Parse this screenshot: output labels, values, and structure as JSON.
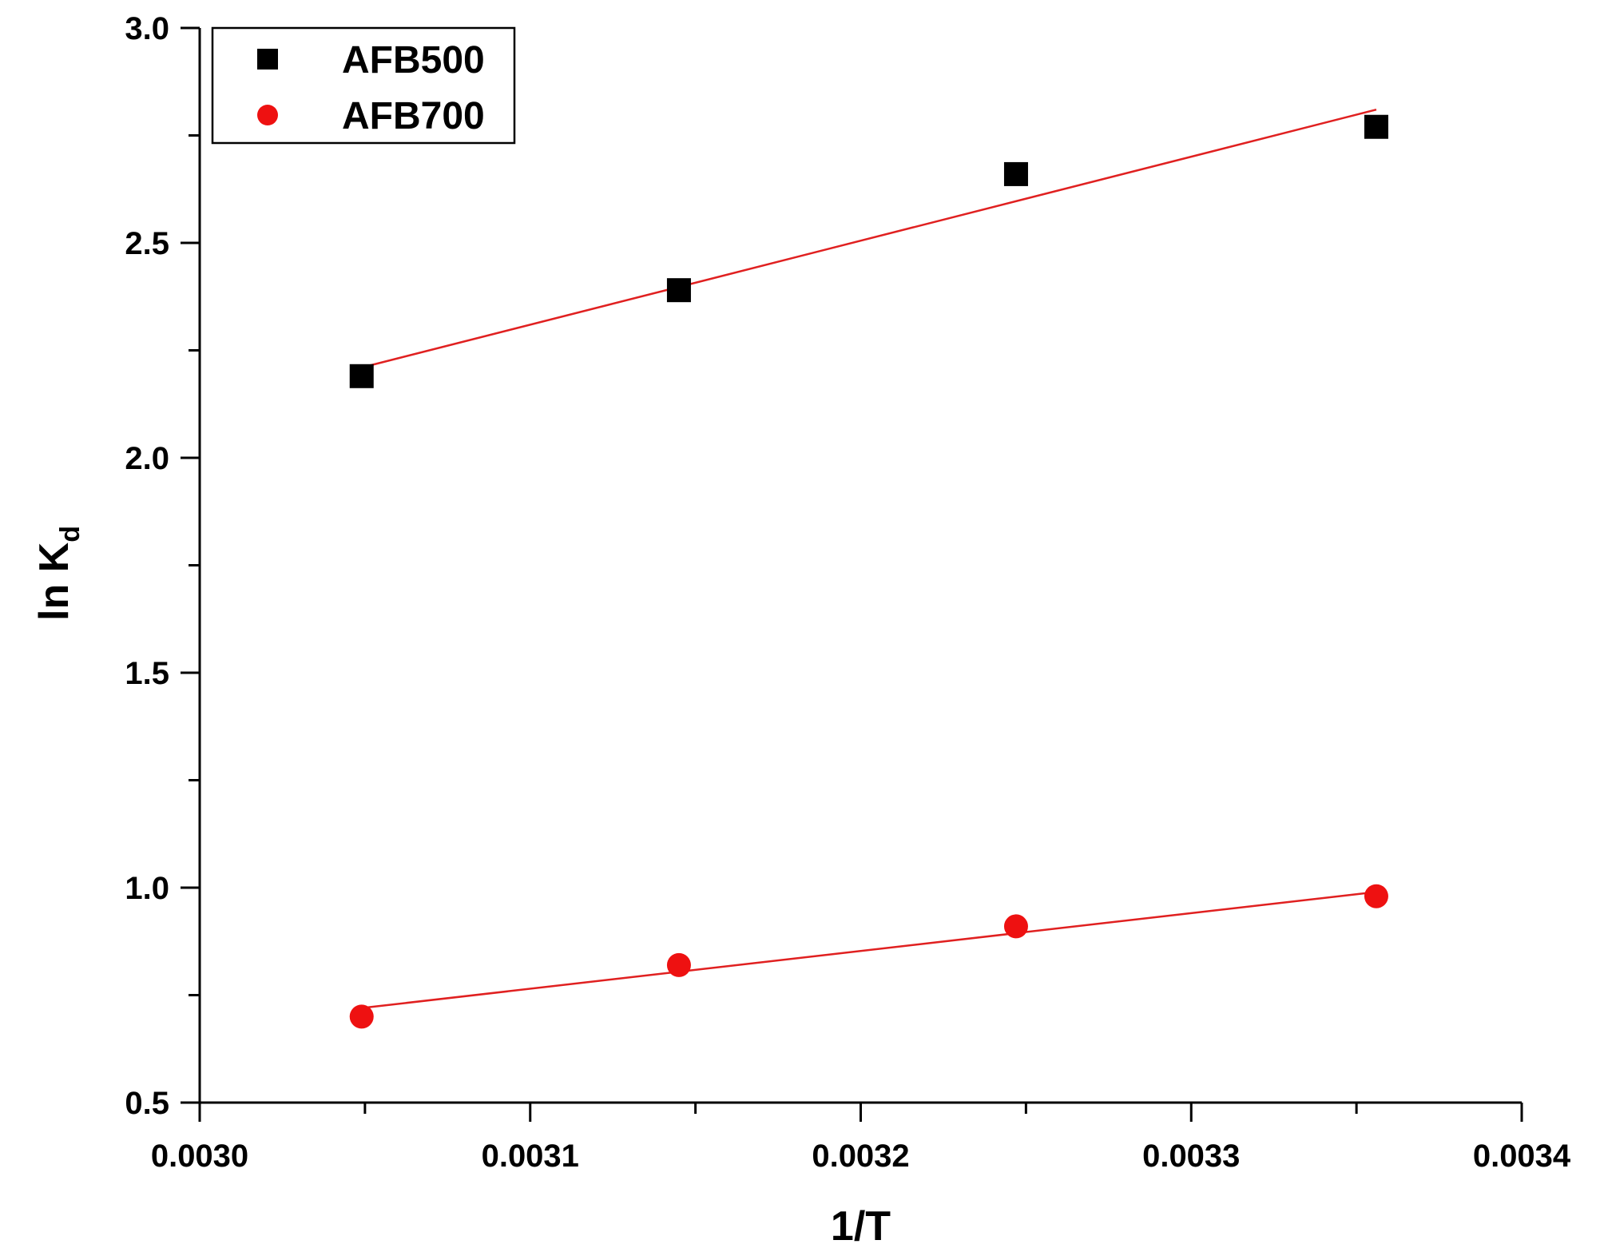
{
  "chart_data": {
    "type": "scatter",
    "xlabel": "1/T",
    "ylabel_main": "ln K",
    "ylabel_sub": "d",
    "xlim": [
      0.003,
      0.0034
    ],
    "ylim": [
      0.5,
      3.0
    ],
    "x_ticks": [
      0.003,
      0.0031,
      0.0032,
      0.0033,
      0.0034
    ],
    "x_tick_labels": [
      "0.0030",
      "0.0031",
      "0.0032",
      "0.0033",
      "0.0034"
    ],
    "y_ticks": [
      0.5,
      1.0,
      1.5,
      2.0,
      2.5,
      3.0
    ],
    "y_tick_labels": [
      "0.5",
      "1.0",
      "1.5",
      "2.0",
      "2.5",
      "3.0"
    ],
    "grid": false,
    "legend_position": "top-left",
    "series": [
      {
        "name": "AFB500",
        "marker": "square",
        "marker_color": "#000000",
        "fit_line_color": "#e02020",
        "x": [
          0.003049,
          0.003145,
          0.003247,
          0.003356
        ],
        "y": [
          2.19,
          2.39,
          2.66,
          2.77
        ],
        "fit": {
          "x": [
            0.003049,
            0.003356
          ],
          "y": [
            2.21,
            2.81
          ]
        }
      },
      {
        "name": "AFB700",
        "marker": "circle",
        "marker_color": "#ee1111",
        "fit_line_color": "#e02020",
        "x": [
          0.003049,
          0.003145,
          0.003247,
          0.003356
        ],
        "y": [
          0.7,
          0.82,
          0.91,
          0.98
        ],
        "fit": {
          "x": [
            0.003049,
            0.003356
          ],
          "y": [
            0.72,
            0.99
          ]
        }
      }
    ]
  }
}
